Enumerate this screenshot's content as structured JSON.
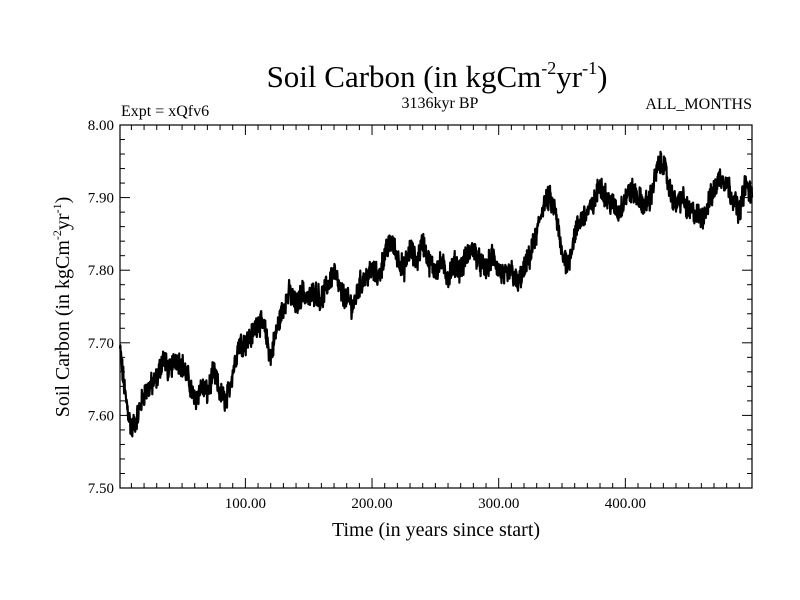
{
  "chart_data": {
    "type": "line",
    "title": "Soil Carbon (in kgCm",
    "title_sup1": "-2",
    "title_mid": "yr",
    "title_sup2": "-1",
    "title_end": ")",
    "subtitle_left": "Expt = xQfv6",
    "subtitle_center": "3136kyr BP",
    "subtitle_right": "ALL_MONTHS",
    "xlabel": "Time (in years since start)",
    "ylabel": "Soil Carbon (in kgCm",
    "ylabel_sup1": "-2",
    "ylabel_mid": "yr",
    "ylabel_sup2": "-1",
    "ylabel_end": ")",
    "xlim": [
      1,
      500
    ],
    "ylim": [
      7.5,
      8.0
    ],
    "x_ticks": [
      100,
      200,
      300,
      400
    ],
    "x_tick_labels": [
      "100.00",
      "200.00",
      "300.00",
      "400.00"
    ],
    "y_ticks": [
      7.5,
      7.6,
      7.7,
      7.8,
      7.9,
      8.0
    ],
    "y_tick_labels": [
      "7.50",
      "7.60",
      "7.70",
      "7.80",
      "7.90",
      "8.00"
    ],
    "grid": false,
    "line_color": "#000000",
    "series": [
      {
        "name": "Soil Carbon",
        "x": [
          1,
          5,
          10,
          15,
          20,
          25,
          30,
          35,
          40,
          45,
          50,
          55,
          60,
          65,
          70,
          75,
          80,
          85,
          90,
          95,
          100,
          105,
          110,
          115,
          120,
          125,
          130,
          135,
          140,
          145,
          150,
          155,
          160,
          165,
          170,
          175,
          180,
          185,
          190,
          195,
          200,
          205,
          210,
          215,
          220,
          225,
          230,
          235,
          240,
          245,
          250,
          255,
          260,
          265,
          270,
          275,
          280,
          285,
          290,
          295,
          300,
          305,
          310,
          315,
          320,
          325,
          330,
          335,
          340,
          345,
          350,
          355,
          360,
          365,
          370,
          375,
          380,
          385,
          390,
          395,
          400,
          405,
          410,
          415,
          420,
          425,
          430,
          435,
          440,
          445,
          450,
          455,
          460,
          465,
          470,
          475,
          480,
          485,
          490,
          495,
          500
        ],
        "values": [
          7.69,
          7.63,
          7.58,
          7.6,
          7.63,
          7.64,
          7.65,
          7.68,
          7.66,
          7.68,
          7.67,
          7.65,
          7.62,
          7.64,
          7.63,
          7.66,
          7.63,
          7.62,
          7.66,
          7.7,
          7.7,
          7.71,
          7.73,
          7.72,
          7.68,
          7.72,
          7.75,
          7.77,
          7.75,
          7.77,
          7.76,
          7.77,
          7.76,
          7.78,
          7.8,
          7.77,
          7.76,
          7.75,
          7.78,
          7.79,
          7.8,
          7.79,
          7.82,
          7.84,
          7.82,
          7.8,
          7.83,
          7.81,
          7.84,
          7.81,
          7.8,
          7.81,
          7.79,
          7.81,
          7.8,
          7.82,
          7.83,
          7.81,
          7.8,
          7.82,
          7.8,
          7.79,
          7.8,
          7.78,
          7.8,
          7.82,
          7.85,
          7.89,
          7.9,
          7.88,
          7.82,
          7.81,
          7.85,
          7.87,
          7.88,
          7.89,
          7.92,
          7.9,
          7.89,
          7.88,
          7.9,
          7.91,
          7.9,
          7.89,
          7.9,
          7.94,
          7.95,
          7.91,
          7.89,
          7.9,
          7.88,
          7.88,
          7.87,
          7.89,
          7.91,
          7.93,
          7.92,
          7.9,
          7.88,
          7.92,
          7.9
        ]
      }
    ]
  }
}
